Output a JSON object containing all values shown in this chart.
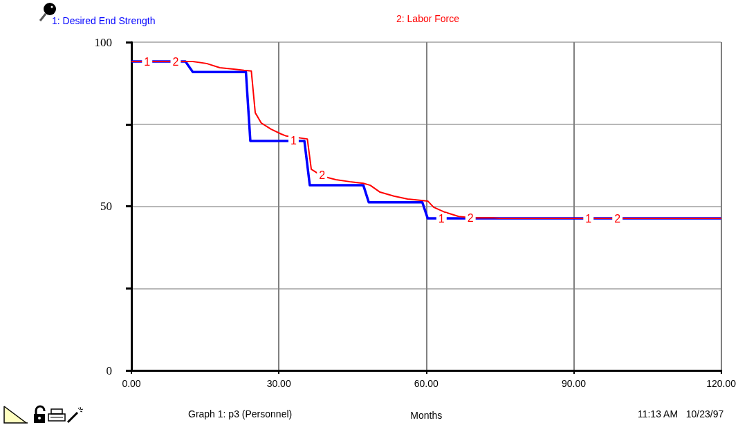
{
  "chart_data": {
    "type": "line",
    "xlabel": "Months",
    "annotations": [
      "Graph 1: p3 (Personnel)",
      "11:13 AM   10/23/97",
      {
        "text": "1",
        "x": 3.2,
        "y": 94.1
      },
      {
        "text": "2",
        "x": 9,
        "y": 94.1
      },
      {
        "text": "1",
        "x": 33,
        "y": 69.9
      },
      {
        "text": "2",
        "x": 38.8,
        "y": 59.4
      },
      {
        "text": "1",
        "x": 63.1,
        "y": 46.3
      },
      {
        "text": "2",
        "x": 69,
        "y": 46.5
      },
      {
        "text": "1",
        "x": 93,
        "y": 46.3
      },
      {
        "text": "2",
        "x": 98.9,
        "y": 46.3
      }
    ],
    "series": [
      {
        "name": "1: Desired End Strength",
        "color": "#0000ff",
        "x": [
          0,
          11,
          12.5,
          23.3,
          24.2,
          35.2,
          36.3,
          47.2,
          48.3,
          59.2,
          60.3,
          120
        ],
        "values": [
          94.1,
          94.1,
          90.9,
          90.9,
          69.9,
          69.9,
          56.4,
          56.4,
          51.2,
          51.2,
          46.3,
          46.3
        ]
      },
      {
        "name": "2: Labor Force",
        "color": "#ff0000",
        "x": [
          0,
          12.5,
          15.3,
          18,
          20.8,
          22.9,
          24.4,
          25.2,
          26.4,
          28.4,
          30.5,
          31.5,
          35.8,
          36.6,
          38.8,
          41.6,
          44.4,
          47.2,
          48.6,
          50.6,
          53.4,
          56.2,
          59,
          60.3,
          61.5,
          63.8,
          66.6,
          69.4,
          73.5,
          75,
          120
        ],
        "values": [
          94.1,
          94.1,
          93.5,
          92.2,
          91.8,
          91.4,
          91.2,
          78.5,
          75.4,
          73.5,
          72,
          71.4,
          70.5,
          61.3,
          59.2,
          58.1,
          57.5,
          57,
          56.4,
          54.3,
          53.1,
          52.2,
          51.8,
          51.6,
          49.7,
          48.2,
          46.9,
          46.5,
          46.5,
          46.3,
          46.3
        ]
      }
    ],
    "xlim": [
      0,
      120
    ],
    "xticks": [
      {
        "value": 0,
        "label": "0.00"
      },
      {
        "value": 30,
        "label": "30.00"
      },
      {
        "value": 60,
        "label": "60.00"
      },
      {
        "value": 90,
        "label": "90.00"
      },
      {
        "value": 120,
        "label": "120.00"
      }
    ],
    "ylim": [
      0,
      100
    ],
    "yticks": [
      0,
      {
        "value": 25,
        "label": null
      },
      50,
      {
        "value": 75,
        "label": null
      },
      100
    ],
    "grid": true,
    "legend": "top",
    "marker": "none",
    "line_style": "solid"
  }
}
